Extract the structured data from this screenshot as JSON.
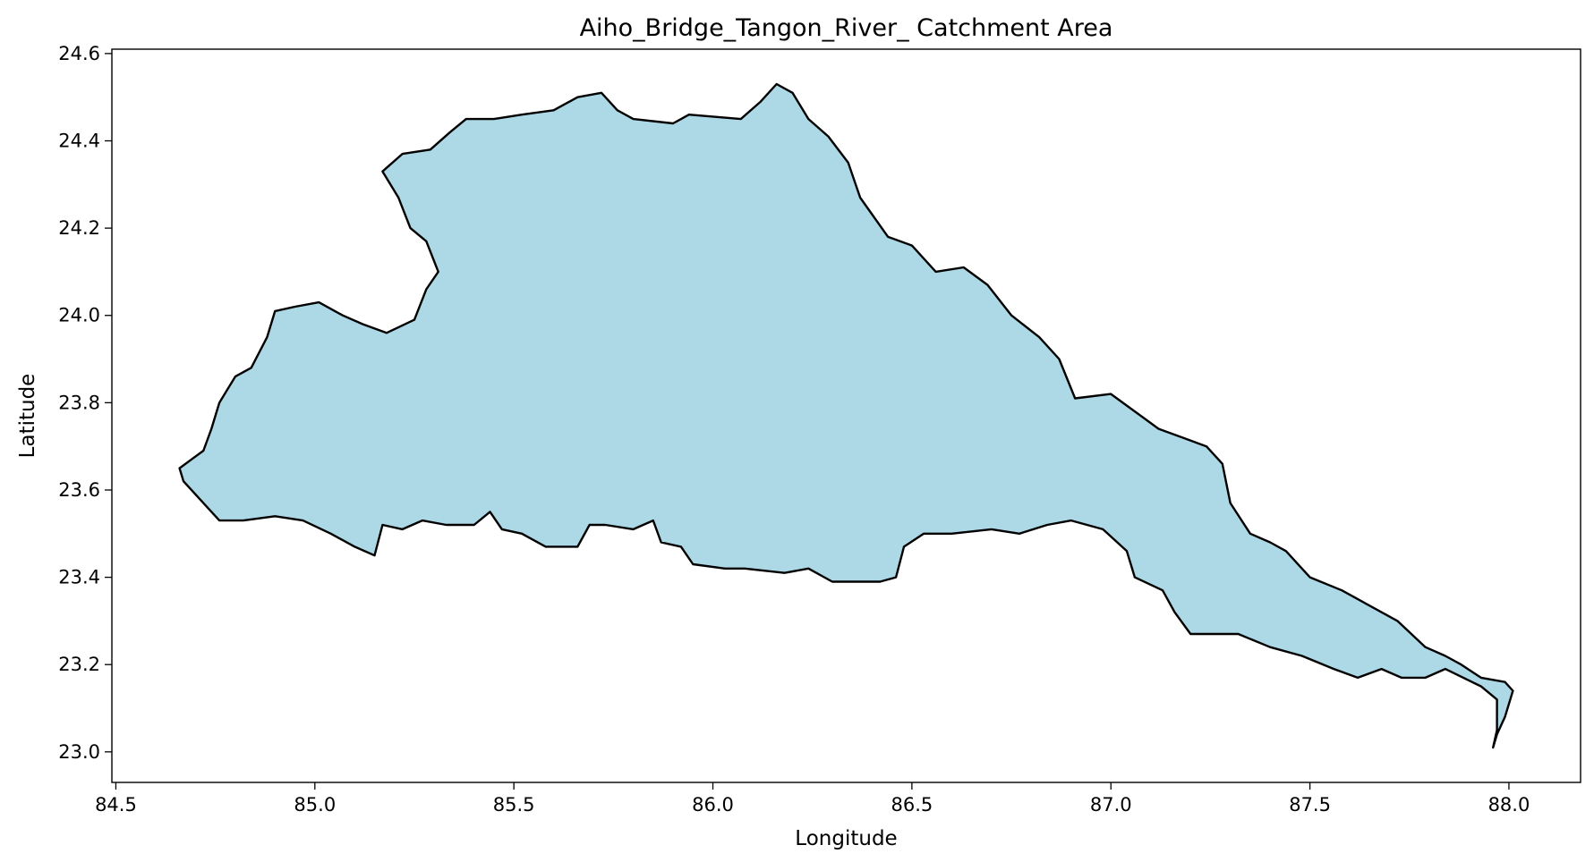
{
  "chart_data": {
    "type": "map",
    "title": "Aiho_Bridge_Tangon_River_ Catchment Area",
    "xlabel": "Longitude",
    "ylabel": "Latitude",
    "xlim": [
      84.49,
      88.18
    ],
    "ylim": [
      22.93,
      24.61
    ],
    "x_ticks": [
      84.5,
      85.0,
      85.5,
      86.0,
      86.5,
      87.0,
      87.5,
      88.0
    ],
    "x_tick_labels": [
      "84.5",
      "85.0",
      "85.5",
      "86.0",
      "86.5",
      "87.0",
      "87.5",
      "88.0"
    ],
    "y_ticks": [
      23.0,
      23.2,
      23.4,
      23.6,
      23.8,
      24.0,
      24.2,
      24.4,
      24.6
    ],
    "y_tick_labels": [
      "23.0",
      "23.2",
      "23.4",
      "23.6",
      "23.8",
      "24.0",
      "24.2",
      "24.4",
      "24.6"
    ],
    "grid": false,
    "fill_color": "#add8e6",
    "edge_color": "#000000",
    "polygon": [
      [
        84.66,
        23.65
      ],
      [
        84.69,
        23.67
      ],
      [
        84.72,
        23.69
      ],
      [
        84.74,
        23.74
      ],
      [
        84.76,
        23.8
      ],
      [
        84.8,
        23.86
      ],
      [
        84.84,
        23.88
      ],
      [
        84.88,
        23.95
      ],
      [
        84.9,
        24.01
      ],
      [
        84.95,
        24.02
      ],
      [
        85.01,
        24.03
      ],
      [
        85.07,
        24.0
      ],
      [
        85.12,
        23.98
      ],
      [
        85.18,
        23.96
      ],
      [
        85.25,
        23.99
      ],
      [
        85.28,
        24.06
      ],
      [
        85.31,
        24.1
      ],
      [
        85.28,
        24.17
      ],
      [
        85.24,
        24.2
      ],
      [
        85.21,
        24.27
      ],
      [
        85.17,
        24.33
      ],
      [
        85.22,
        24.37
      ],
      [
        85.29,
        24.38
      ],
      [
        85.34,
        24.42
      ],
      [
        85.38,
        24.45
      ],
      [
        85.45,
        24.45
      ],
      [
        85.52,
        24.46
      ],
      [
        85.6,
        24.47
      ],
      [
        85.66,
        24.5
      ],
      [
        85.72,
        24.51
      ],
      [
        85.76,
        24.47
      ],
      [
        85.8,
        24.45
      ],
      [
        85.9,
        24.44
      ],
      [
        85.94,
        24.46
      ],
      [
        86.07,
        24.45
      ],
      [
        86.12,
        24.49
      ],
      [
        86.16,
        24.53
      ],
      [
        86.2,
        24.51
      ],
      [
        86.24,
        24.45
      ],
      [
        86.29,
        24.41
      ],
      [
        86.34,
        24.35
      ],
      [
        86.37,
        24.27
      ],
      [
        86.44,
        24.18
      ],
      [
        86.5,
        24.16
      ],
      [
        86.56,
        24.1
      ],
      [
        86.63,
        24.11
      ],
      [
        86.69,
        24.07
      ],
      [
        86.75,
        24.0
      ],
      [
        86.82,
        23.95
      ],
      [
        86.87,
        23.9
      ],
      [
        86.91,
        23.81
      ],
      [
        87.0,
        23.82
      ],
      [
        87.06,
        23.78
      ],
      [
        87.12,
        23.74
      ],
      [
        87.18,
        23.72
      ],
      [
        87.24,
        23.7
      ],
      [
        87.28,
        23.66
      ],
      [
        87.3,
        23.57
      ],
      [
        87.35,
        23.5
      ],
      [
        87.4,
        23.48
      ],
      [
        87.44,
        23.46
      ],
      [
        87.5,
        23.4
      ],
      [
        87.58,
        23.37
      ],
      [
        87.64,
        23.34
      ],
      [
        87.72,
        23.3
      ],
      [
        87.79,
        23.24
      ],
      [
        87.84,
        23.22
      ],
      [
        87.88,
        23.2
      ],
      [
        87.93,
        23.17
      ],
      [
        87.99,
        23.16
      ],
      [
        88.01,
        23.14
      ],
      [
        87.99,
        23.08
      ],
      [
        87.97,
        23.04
      ],
      [
        87.96,
        23.01
      ],
      [
        87.97,
        23.05
      ],
      [
        87.97,
        23.12
      ],
      [
        87.93,
        23.15
      ],
      [
        87.84,
        23.19
      ],
      [
        87.79,
        23.17
      ],
      [
        87.73,
        23.17
      ],
      [
        87.68,
        23.19
      ],
      [
        87.62,
        23.17
      ],
      [
        87.56,
        23.19
      ],
      [
        87.48,
        23.22
      ],
      [
        87.4,
        23.24
      ],
      [
        87.32,
        23.27
      ],
      [
        87.2,
        23.27
      ],
      [
        87.16,
        23.32
      ],
      [
        87.13,
        23.37
      ],
      [
        87.06,
        23.4
      ],
      [
        87.04,
        23.46
      ],
      [
        86.98,
        23.51
      ],
      [
        86.9,
        23.53
      ],
      [
        86.84,
        23.52
      ],
      [
        86.77,
        23.5
      ],
      [
        86.7,
        23.51
      ],
      [
        86.6,
        23.5
      ],
      [
        86.53,
        23.5
      ],
      [
        86.48,
        23.47
      ],
      [
        86.46,
        23.4
      ],
      [
        86.42,
        23.39
      ],
      [
        86.35,
        23.39
      ],
      [
        86.3,
        23.39
      ],
      [
        86.24,
        23.42
      ],
      [
        86.18,
        23.41
      ],
      [
        86.08,
        23.42
      ],
      [
        86.03,
        23.42
      ],
      [
        85.95,
        23.43
      ],
      [
        85.92,
        23.47
      ],
      [
        85.87,
        23.48
      ],
      [
        85.85,
        23.53
      ],
      [
        85.8,
        23.51
      ],
      [
        85.73,
        23.52
      ],
      [
        85.69,
        23.52
      ],
      [
        85.66,
        23.47
      ],
      [
        85.58,
        23.47
      ],
      [
        85.52,
        23.5
      ],
      [
        85.47,
        23.51
      ],
      [
        85.44,
        23.55
      ],
      [
        85.4,
        23.52
      ],
      [
        85.33,
        23.52
      ],
      [
        85.27,
        23.53
      ],
      [
        85.22,
        23.51
      ],
      [
        85.17,
        23.52
      ],
      [
        85.15,
        23.45
      ],
      [
        85.1,
        23.47
      ],
      [
        85.04,
        23.5
      ],
      [
        84.97,
        23.53
      ],
      [
        84.9,
        23.54
      ],
      [
        84.82,
        23.53
      ],
      [
        84.76,
        23.53
      ],
      [
        84.71,
        23.58
      ],
      [
        84.67,
        23.62
      ],
      [
        84.66,
        23.65
      ]
    ]
  }
}
